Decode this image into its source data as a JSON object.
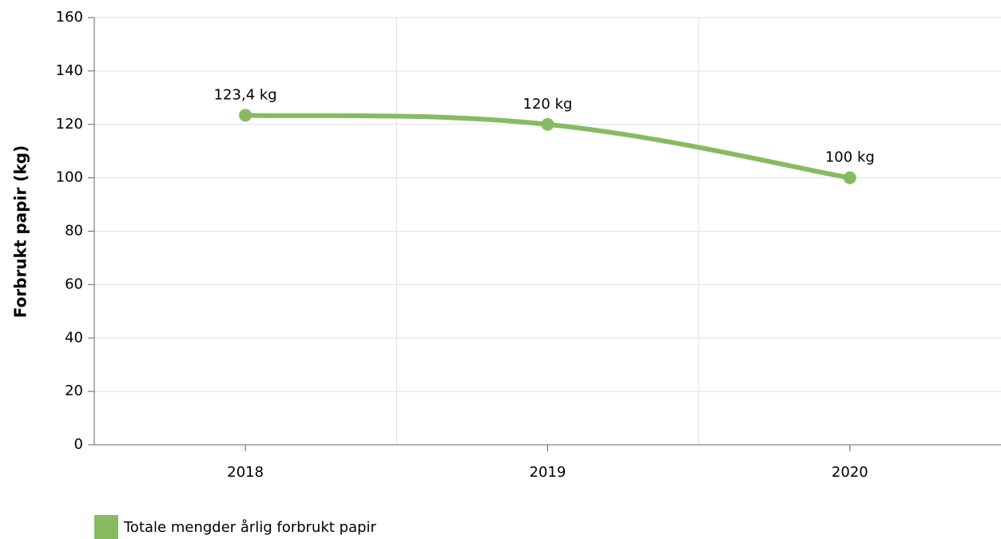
{
  "chart_data": {
    "type": "line",
    "y_label": "Forbrukt papir (kg)",
    "categories": [
      "2018",
      "2019",
      "2020"
    ],
    "series": [
      {
        "name": "Totale mengder årlig forbrukt papir",
        "color": "#87bb62",
        "values": [
          123.4,
          120,
          100
        ],
        "value_labels": [
          "123,4 kg",
          "120 kg",
          "100 kg"
        ]
      }
    ],
    "ylim": [
      0,
      160
    ],
    "yticks": [
      0,
      20,
      40,
      60,
      80,
      100,
      120,
      140,
      160
    ],
    "grid": true
  }
}
